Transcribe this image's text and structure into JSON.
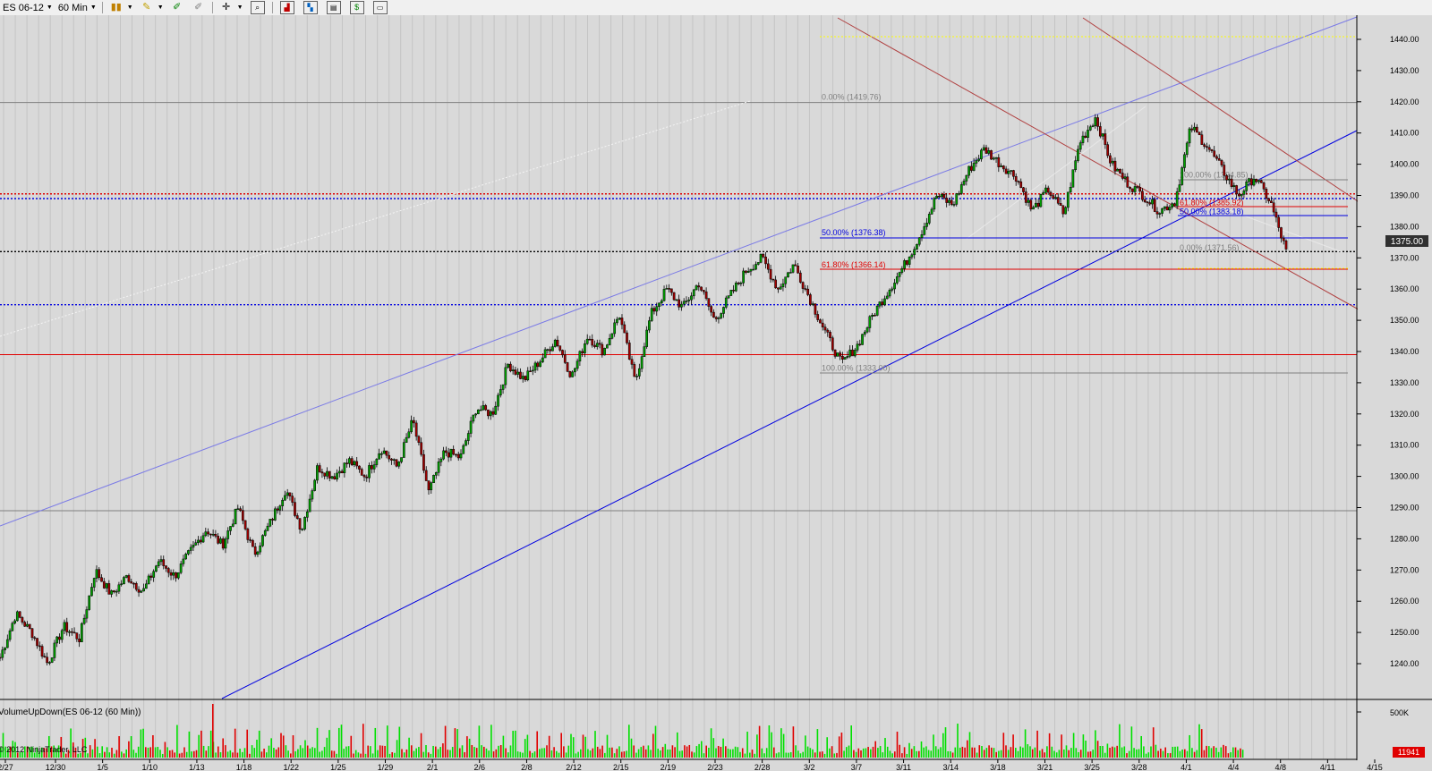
{
  "toolbar": {
    "instrument": "ES 06-12",
    "interval": "60 Min"
  },
  "colors": {
    "background": "#d9d9d9",
    "up_bar": "#00a000",
    "down_bar": "#a00000",
    "volume_up": "#00e000",
    "volume_down": "#e00000",
    "channel_blue": "#0000e0",
    "channel_lightblue": "#7a7ae6",
    "trend_brown": "#b04040",
    "fib_red": "#e00000",
    "fib_yellow": "#ffff00",
    "fib_gray": "#808080"
  },
  "chart_data": {
    "type": "candlestick",
    "instrument": "ES 06-12",
    "interval": "60 Min",
    "ylim": [
      1235,
      1445
    ],
    "y_ticks": [
      "1440.00",
      "1430.00",
      "1420.00",
      "1410.00",
      "1400.00",
      "1390.00",
      "1380.00",
      "1370.00",
      "1360.00",
      "1350.00",
      "1340.00",
      "1330.00",
      "1320.00",
      "1310.00",
      "1300.00",
      "1290.00",
      "1280.00",
      "1270.00",
      "1260.00",
      "1250.00",
      "1240.00"
    ],
    "x_ticks": [
      "2/27",
      "12/30",
      "1/5",
      "1/10",
      "1/13",
      "1/18",
      "1/22",
      "1/25",
      "1/29",
      "2/1",
      "2/6",
      "2/8",
      "2/12",
      "2/15",
      "2/19",
      "2/23",
      "2/28",
      "3/2",
      "3/7",
      "3/11",
      "3/14",
      "3/18",
      "3/21",
      "3/25",
      "3/28",
      "4/1",
      "4/4",
      "4/8",
      "4/11",
      "4/15"
    ],
    "last_price": "1375.00",
    "close_path": [
      1242,
      1256,
      1250,
      1240,
      1252,
      1248,
      1270,
      1262,
      1268,
      1263,
      1273,
      1268,
      1276,
      1283,
      1278,
      1290,
      1275,
      1285,
      1296,
      1283,
      1303,
      1300,
      1305,
      1300,
      1309,
      1303,
      1318,
      1295,
      1308,
      1306,
      1322,
      1320,
      1336,
      1331,
      1337,
      1344,
      1332,
      1345,
      1340,
      1352,
      1330,
      1352,
      1360,
      1354,
      1362,
      1350,
      1358,
      1366,
      1370,
      1360,
      1368,
      1357,
      1346,
      1336,
      1342,
      1352,
      1360,
      1368,
      1378,
      1390,
      1387,
      1398,
      1405,
      1400,
      1396,
      1385,
      1392,
      1384,
      1407,
      1415,
      1400,
      1394,
      1390,
      1385,
      1388,
      1412,
      1406,
      1398,
      1390,
      1396,
      1388,
      1372
    ],
    "horizontal_lines": [
      {
        "price": 1419.76,
        "style": "solid",
        "color": "#808080"
      },
      {
        "price": 1390.5,
        "style": "dotted",
        "color": "#e00000"
      },
      {
        "price": 1389,
        "style": "dotted",
        "color": "#0000e0"
      },
      {
        "price": 1372,
        "style": "dotted",
        "color": "#000000"
      },
      {
        "price": 1355,
        "style": "dotted",
        "color": "#0000e0"
      },
      {
        "price": 1339,
        "style": "solid",
        "color": "#e00000"
      },
      {
        "price": 1289,
        "style": "solid",
        "color": "#808080"
      }
    ],
    "fib_labels": [
      {
        "text": "0.00% (1419.76)",
        "price": 1419.76,
        "color": "#808080"
      },
      {
        "text": "50.00% (1376.38)",
        "price": 1376.38,
        "color": "#0000e0"
      },
      {
        "text": "61.80% (1366.14)",
        "price": 1366.14,
        "color": "#e00000"
      },
      {
        "text": "100.00% (1333.00)",
        "price": 1333.0,
        "color": "#808080"
      },
      {
        "text": "100.00% (1394.85)",
        "price": 1394.85,
        "color": "#808080"
      },
      {
        "text": "61.80% (1385.92)",
        "price": 1385.92,
        "color": "#e00000"
      },
      {
        "text": "50.00% (1383.18)",
        "price": 1383.18,
        "color": "#0000e0"
      },
      {
        "text": "0.00% (1371.56)",
        "price": 1371.56,
        "color": "#808080"
      }
    ],
    "volume_panel": {
      "label": "VolumeUpDown(ES 06-12 (60 Min))",
      "scale_label": "500K",
      "last_value": "11941"
    },
    "copyright": "© 2012 NinjaTrader, LLC"
  }
}
